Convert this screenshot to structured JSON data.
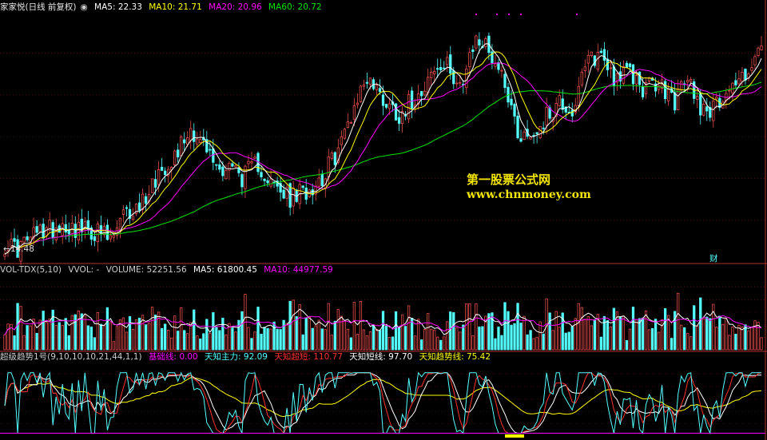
{
  "colors": {
    "background": "#000000",
    "up": "#e64c4c",
    "down": "#54ffff",
    "ma5": "#ffffff",
    "ma10": "#ffff00",
    "ma20": "#ff00ff",
    "ma60": "#00e600",
    "panel_border": "#b33232",
    "grid": "#7a1414",
    "watermark": "#f2e600"
  },
  "price_panel": {
    "stock_name": "家家悦(日线 前复权)",
    "indicators": [
      {
        "label": "MA5: 22.33",
        "color": "#ffffff"
      },
      {
        "label": "MA10: 21.71",
        "color": "#ffff00"
      },
      {
        "label": "MA20: 20.96",
        "color": "#ff00ff"
      },
      {
        "label": "MA60: 20.72",
        "color": "#00e600"
      }
    ],
    "low_label": "14.48",
    "event_marker": "财"
  },
  "watermark": {
    "line1": "第一股票公式网",
    "line2": "www.chnmoney.com"
  },
  "volume_panel": {
    "indicators": [
      {
        "label": "VOL-TDX(5,10)",
        "color": "#cccccc"
      },
      {
        "label": "VVOL: -",
        "color": "#cccccc"
      },
      {
        "label": "VOLUME: 52251.56",
        "color": "#cccccc"
      },
      {
        "label": "MA5: 61800.45",
        "color": "#ffffff"
      },
      {
        "label": "MA10: 44977.59",
        "color": "#ff00ff"
      }
    ]
  },
  "trend_panel": {
    "indicators": [
      {
        "label": "超级趋势1号(9,10,10,10,21,44,1,1)",
        "color": "#cccccc"
      },
      {
        "label": "基础线: 0.00",
        "color": "#ff00ff"
      },
      {
        "label": "天知主力: 92.09",
        "color": "#54ffff"
      },
      {
        "label": "天知超短: 110.77",
        "color": "#ff3030"
      },
      {
        "label": "天知短线: 97.70",
        "color": "#ffffff"
      },
      {
        "label": "天知趋势线: 75.42",
        "color": "#ffff00"
      }
    ]
  },
  "chart_data": {
    "type": "candlestick",
    "price_ylim": [
      14.0,
      25.2
    ],
    "volume_ylim": [
      0,
      140000
    ],
    "trend_ylim": [
      -5,
      130
    ],
    "anchors": [
      [
        0,
        14.8
      ],
      [
        4,
        14.6
      ],
      [
        10,
        15.3
      ],
      [
        18,
        15.7
      ],
      [
        25,
        15.4
      ],
      [
        30,
        15.3
      ],
      [
        33,
        14.9
      ],
      [
        37,
        16.0
      ],
      [
        42,
        16.5
      ],
      [
        48,
        18.0
      ],
      [
        53,
        18.8
      ],
      [
        58,
        20.0
      ],
      [
        62,
        19.2
      ],
      [
        67,
        18.1
      ],
      [
        70,
        18.4
      ],
      [
        74,
        17.8
      ],
      [
        79,
        18.4
      ],
      [
        84,
        17.3
      ],
      [
        89,
        16.8
      ],
      [
        94,
        17.2
      ],
      [
        99,
        17.8
      ],
      [
        104,
        19.0
      ],
      [
        109,
        21.0
      ],
      [
        113,
        22.3
      ],
      [
        118,
        21.3
      ],
      [
        123,
        20.6
      ],
      [
        128,
        21.4
      ],
      [
        133,
        22.4
      ],
      [
        138,
        22.7
      ],
      [
        143,
        21.9
      ],
      [
        147,
        24.0
      ],
      [
        151,
        23.5
      ],
      [
        156,
        22.1
      ],
      [
        160,
        19.8
      ],
      [
        164,
        19.6
      ],
      [
        168,
        20.3
      ],
      [
        173,
        21.2
      ],
      [
        177,
        20.7
      ],
      [
        182,
        23.0
      ],
      [
        186,
        23.3
      ],
      [
        190,
        22.3
      ],
      [
        195,
        22.4
      ],
      [
        199,
        21.8
      ],
      [
        204,
        21.9
      ],
      [
        209,
        21.2
      ],
      [
        213,
        22.2
      ],
      [
        217,
        21.0
      ],
      [
        221,
        20.8
      ],
      [
        225,
        21.7
      ],
      [
        229,
        22.1
      ],
      [
        233,
        22.8
      ],
      [
        236,
        23.5
      ]
    ],
    "seed": 17
  }
}
